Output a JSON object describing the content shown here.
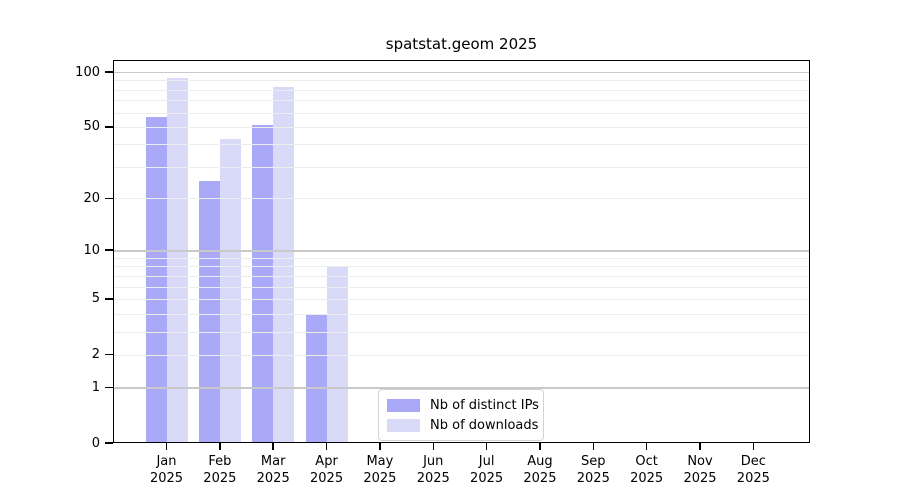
{
  "chart_data": {
    "type": "bar",
    "title": "spatstat.geom 2025",
    "categories": [
      "Jan",
      "Feb",
      "Mar",
      "Apr",
      "May",
      "Jun",
      "Jul",
      "Aug",
      "Sep",
      "Oct",
      "Nov",
      "Dec"
    ],
    "x_tick_year": "2025",
    "series": [
      {
        "name": "Nb of distinct IPs",
        "color": "#a9a9f8",
        "values": [
          57,
          25,
          51,
          4,
          0,
          0,
          0,
          0,
          0,
          0,
          0,
          0
        ]
      },
      {
        "name": "Nb of downloads",
        "color": "#d9d9f8",
        "values": [
          93,
          43,
          83,
          8,
          0,
          0,
          0,
          0,
          0,
          0,
          0,
          0
        ]
      }
    ],
    "y_axis": {
      "scale": "log10(value+1)",
      "tick_labels": [
        0,
        1,
        2,
        5,
        10,
        20,
        50,
        100
      ],
      "major_gridlines": [
        1,
        10,
        100
      ],
      "minor_gridlines": [
        2,
        3,
        4,
        5,
        6,
        7,
        8,
        9,
        20,
        30,
        40,
        50,
        60,
        70,
        80,
        90
      ],
      "range": [
        0,
        116
      ]
    },
    "legend_position": "bottom-center",
    "grid": true
  },
  "colors": {
    "background": "#ffffff",
    "spine": "#000000",
    "text": "#000000",
    "major_grid": "#c9c9c9",
    "minor_grid": "#ededed",
    "legend_border": "#d2d2d2"
  }
}
